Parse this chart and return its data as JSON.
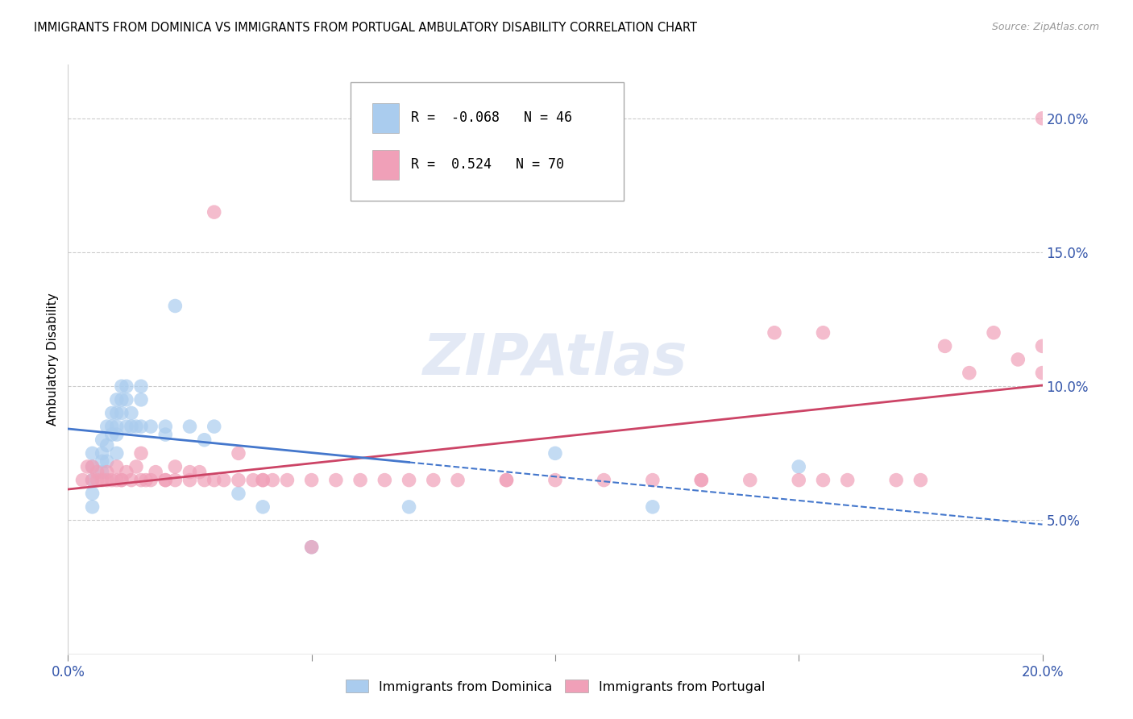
{
  "title": "IMMIGRANTS FROM DOMINICA VS IMMIGRANTS FROM PORTUGAL AMBULATORY DISABILITY CORRELATION CHART",
  "source": "Source: ZipAtlas.com",
  "ylabel": "Ambulatory Disability",
  "xlim": [
    0.0,
    0.2
  ],
  "ylim": [
    0.0,
    0.22
  ],
  "right_yticks": [
    0.05,
    0.1,
    0.15,
    0.2
  ],
  "right_yticklabels": [
    "5.0%",
    "10.0%",
    "15.0%",
    "20.0%"
  ],
  "dominica_color": "#aaccee",
  "portugal_color": "#f0a0b8",
  "dominica_R": -0.068,
  "dominica_N": 46,
  "portugal_R": 0.524,
  "portugal_N": 70,
  "dominica_line_color": "#4477cc",
  "portugal_line_color": "#cc4466",
  "watermark": "ZIPAtlas",
  "dominica_scatter_x": [
    0.005,
    0.005,
    0.005,
    0.005,
    0.005,
    0.007,
    0.007,
    0.007,
    0.007,
    0.008,
    0.008,
    0.008,
    0.009,
    0.009,
    0.009,
    0.01,
    0.01,
    0.01,
    0.01,
    0.01,
    0.011,
    0.011,
    0.011,
    0.012,
    0.012,
    0.012,
    0.013,
    0.013,
    0.014,
    0.015,
    0.015,
    0.015,
    0.017,
    0.02,
    0.02,
    0.022,
    0.025,
    0.028,
    0.03,
    0.035,
    0.04,
    0.05,
    0.07,
    0.1,
    0.12,
    0.15
  ],
  "dominica_scatter_y": [
    0.075,
    0.07,
    0.065,
    0.06,
    0.055,
    0.08,
    0.075,
    0.072,
    0.068,
    0.085,
    0.078,
    0.072,
    0.09,
    0.085,
    0.082,
    0.095,
    0.09,
    0.085,
    0.082,
    0.075,
    0.1,
    0.095,
    0.09,
    0.1,
    0.095,
    0.085,
    0.09,
    0.085,
    0.085,
    0.1,
    0.095,
    0.085,
    0.085,
    0.085,
    0.082,
    0.13,
    0.085,
    0.08,
    0.085,
    0.06,
    0.055,
    0.04,
    0.055,
    0.075,
    0.055,
    0.07
  ],
  "portugal_scatter_x": [
    0.003,
    0.004,
    0.005,
    0.005,
    0.006,
    0.006,
    0.007,
    0.008,
    0.008,
    0.009,
    0.01,
    0.01,
    0.011,
    0.011,
    0.012,
    0.013,
    0.014,
    0.015,
    0.015,
    0.016,
    0.017,
    0.018,
    0.02,
    0.02,
    0.022,
    0.022,
    0.025,
    0.025,
    0.027,
    0.028,
    0.03,
    0.03,
    0.032,
    0.035,
    0.035,
    0.038,
    0.04,
    0.04,
    0.042,
    0.045,
    0.05,
    0.05,
    0.055,
    0.06,
    0.065,
    0.07,
    0.075,
    0.08,
    0.09,
    0.09,
    0.1,
    0.11,
    0.12,
    0.13,
    0.13,
    0.14,
    0.15,
    0.155,
    0.16,
    0.17,
    0.175,
    0.18,
    0.185,
    0.19,
    0.195,
    0.2,
    0.2,
    0.2,
    0.145,
    0.155
  ],
  "portugal_scatter_y": [
    0.065,
    0.07,
    0.07,
    0.065,
    0.068,
    0.065,
    0.065,
    0.065,
    0.068,
    0.065,
    0.065,
    0.07,
    0.065,
    0.065,
    0.068,
    0.065,
    0.07,
    0.065,
    0.075,
    0.065,
    0.065,
    0.068,
    0.065,
    0.065,
    0.07,
    0.065,
    0.068,
    0.065,
    0.068,
    0.065,
    0.065,
    0.165,
    0.065,
    0.065,
    0.075,
    0.065,
    0.065,
    0.065,
    0.065,
    0.065,
    0.065,
    0.04,
    0.065,
    0.065,
    0.065,
    0.065,
    0.065,
    0.065,
    0.065,
    0.065,
    0.065,
    0.065,
    0.065,
    0.065,
    0.065,
    0.065,
    0.065,
    0.065,
    0.065,
    0.065,
    0.065,
    0.115,
    0.105,
    0.12,
    0.11,
    0.115,
    0.105,
    0.2,
    0.12,
    0.12
  ]
}
